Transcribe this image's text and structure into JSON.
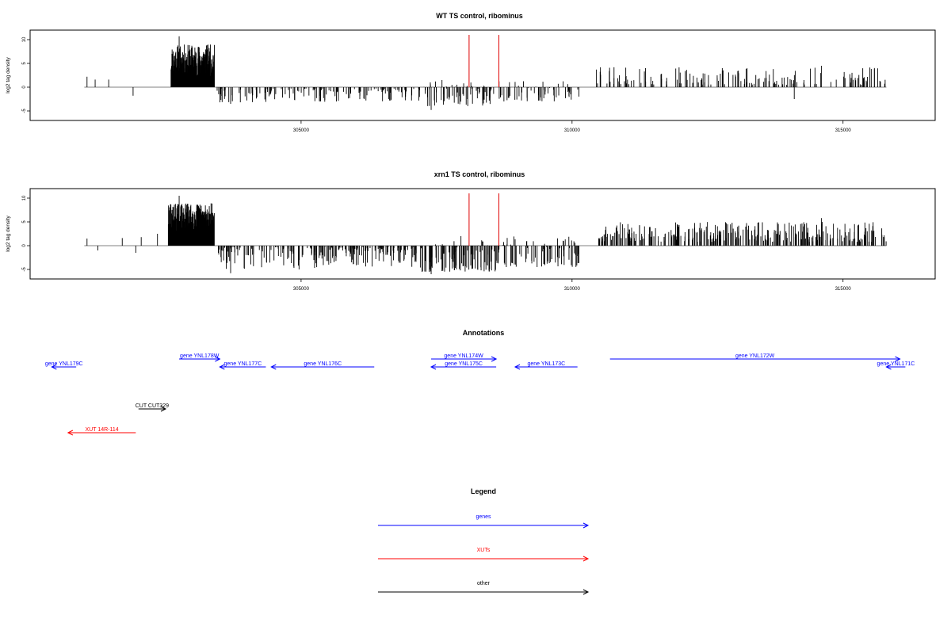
{
  "chart_data": [
    {
      "type": "bar",
      "title": "WT TS control, ribominus",
      "ylabel": "log2 tag density",
      "xlabel": "",
      "xlim": [
        300000,
        316700
      ],
      "ylim": [
        -7,
        12
      ],
      "yticks": [
        -5,
        0,
        5,
        10
      ],
      "xticks": [
        305000,
        310000,
        315000
      ],
      "baseline": [
        301000,
        315800
      ],
      "red_markers": [
        308100,
        308650
      ],
      "plateau": {
        "from": 302600,
        "to": 303400,
        "low": 2,
        "high": 9
      },
      "seed": 11,
      "sparse_points": [
        {
          "x": 301050,
          "y": 2.2
        },
        {
          "x": 301200,
          "y": 1.6
        },
        {
          "x": 301450,
          "y": 1.6
        },
        {
          "x": 301900,
          "y": -1.8
        },
        {
          "x": 302750,
          "y": 10.7
        },
        {
          "x": 303700,
          "y": -3.5
        },
        {
          "x": 304000,
          "y": -2.8
        },
        {
          "x": 307400,
          "y": -4.8
        },
        {
          "x": 307600,
          "y": 1.5
        },
        {
          "x": 308000,
          "y": 0.8
        },
        {
          "x": 314100,
          "y": -2.5
        },
        {
          "x": 314600,
          "y": 4.5
        }
      ],
      "segments": [
        {
          "from": 303450,
          "to": 305800,
          "min": -3.2,
          "max": -0.3,
          "count": 85
        },
        {
          "from": 305800,
          "to": 307200,
          "min": -3.0,
          "max": -0.3,
          "count": 55
        },
        {
          "from": 307200,
          "to": 308600,
          "min": -4.0,
          "max": 1.2,
          "count": 70
        },
        {
          "from": 308600,
          "to": 310150,
          "min": -3.0,
          "max": 1.5,
          "count": 60
        },
        {
          "from": 310450,
          "to": 315800,
          "min": 0.5,
          "max": 4.2,
          "count": 160
        }
      ]
    },
    {
      "type": "bar",
      "title": "xrn1 TS control, ribominus",
      "ylabel": "log2 tag density",
      "xlabel": "",
      "xlim": [
        300000,
        316700
      ],
      "ylim": [
        -7,
        12
      ],
      "yticks": [
        -5,
        0,
        5,
        10
      ],
      "xticks": [
        305000,
        310000,
        315000
      ],
      "baseline": [
        301000,
        315800
      ],
      "red_markers": [
        308100,
        308650
      ],
      "plateau": {
        "from": 302550,
        "to": 303400,
        "low": 3,
        "high": 9
      },
      "seed": 29,
      "sparse_points": [
        {
          "x": 301050,
          "y": 1.5
        },
        {
          "x": 301250,
          "y": -1.0
        },
        {
          "x": 301700,
          "y": 1.6
        },
        {
          "x": 301950,
          "y": -1.5
        },
        {
          "x": 302050,
          "y": 1.8
        },
        {
          "x": 302350,
          "y": 2.5
        },
        {
          "x": 302750,
          "y": 10.5
        },
        {
          "x": 303700,
          "y": -5.8
        },
        {
          "x": 307400,
          "y": -6.0
        },
        {
          "x": 307950,
          "y": 2.0
        },
        {
          "x": 314600,
          "y": 5.8
        }
      ],
      "segments": [
        {
          "from": 303450,
          "to": 305800,
          "min": -5.0,
          "max": -0.3,
          "count": 120
        },
        {
          "from": 305800,
          "to": 307200,
          "min": -4.5,
          "max": -0.3,
          "count": 90
        },
        {
          "from": 307200,
          "to": 308600,
          "min": -5.5,
          "max": 1.5,
          "count": 110
        },
        {
          "from": 308600,
          "to": 310150,
          "min": -4.5,
          "max": 2.0,
          "count": 95
        },
        {
          "from": 310450,
          "to": 315800,
          "min": 0.8,
          "max": 5.0,
          "count": 320
        }
      ]
    }
  ],
  "annotations": {
    "title": "Annotations",
    "features": [
      {
        "label": "gene YNL179C",
        "from": 300850,
        "to": 300400,
        "type": "genes",
        "row": 1
      },
      {
        "label": "gene YNL178W",
        "from": 302750,
        "to": 303500,
        "type": "genes",
        "row": 0
      },
      {
        "label": "gene YNL177C",
        "from": 304350,
        "to": 303500,
        "type": "genes",
        "row": 1
      },
      {
        "label": "gene YNL176C",
        "from": 306350,
        "to": 304450,
        "type": "genes",
        "row": 1
      },
      {
        "label": "gene YNL175C",
        "from": 308600,
        "to": 307400,
        "type": "genes",
        "row": 1
      },
      {
        "label": "gene YNL174W",
        "from": 307400,
        "to": 308600,
        "type": "genes",
        "row": 0
      },
      {
        "label": "gene YNL173C",
        "from": 310100,
        "to": 308950,
        "type": "genes",
        "row": 1
      },
      {
        "label": "gene YNL172W",
        "from": 310700,
        "to": 316050,
        "type": "genes",
        "row": 0
      },
      {
        "label": "gene YNL171C",
        "from": 316150,
        "to": 315800,
        "type": "genes",
        "row": 1
      },
      {
        "label": "CUT CUT329",
        "from": 302000,
        "to": 302500,
        "type": "other",
        "row": 2
      },
      {
        "label": "XUT 14R-114",
        "from": 301950,
        "to": 300700,
        "type": "XUTs",
        "row": 3
      }
    ]
  },
  "legend": {
    "title": "Legend",
    "entries": [
      {
        "label": "genes",
        "color": "#0000ff"
      },
      {
        "label": "XUTs",
        "color": "#ff0000"
      },
      {
        "label": "other",
        "color": "#000000"
      }
    ]
  },
  "colors": {
    "genes": "#0000ff",
    "XUTs": "#ff0000",
    "other": "#000000",
    "bars": "#000000",
    "baseline": "#808080",
    "marker": "#e00000"
  }
}
